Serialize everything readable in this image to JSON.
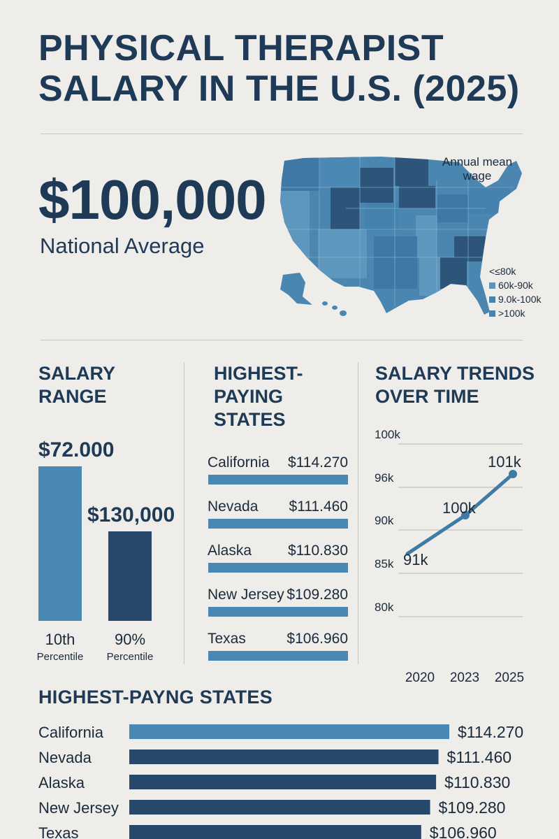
{
  "header": {
    "title_line1": "PHYSICAL THERAPIST",
    "title_line2": "SALARY IN THE U.S. (2025)"
  },
  "summary": {
    "value": "$100,000",
    "caption": "National Average"
  },
  "map": {
    "title_line1": "Annual mean",
    "title_line2": "wage",
    "legend": [
      {
        "label": "<≤80k",
        "color": null
      },
      {
        "label": "60k-90k",
        "color": "#5f93b6"
      },
      {
        "label": "9.0k-100k",
        "color": "#4b82aa"
      },
      {
        "label": ">100k",
        "color": "#4a82ae"
      }
    ],
    "colors": {
      "light": "#5e97bd",
      "mid": "#3f78a5",
      "dark": "#2d557a"
    }
  },
  "colors": {
    "primary": "#4a87b2",
    "dark": "#28486b",
    "text": "#1e3a56",
    "background": "#efedea"
  },
  "chart_data": [
    {
      "type": "bar",
      "title_line1": "SALARY",
      "title_line2": "RANGE",
      "categories": [
        "10th",
        "90%"
      ],
      "category_sublabels": [
        "Percentile",
        "Percentile"
      ],
      "value_labels": [
        "$72.000",
        "$130,000"
      ],
      "values": [
        72000,
        130000
      ],
      "colors": [
        "#4a87b2",
        "#28486b"
      ]
    },
    {
      "type": "bar",
      "orientation": "horizontal",
      "title_line1": "HIGHEST-",
      "title_line2": "PAYING",
      "title_line3": "STATES",
      "categories": [
        "California",
        "Nevada",
        "Alaska",
        "New Jersey",
        "Texas"
      ],
      "value_labels": [
        "$114.270",
        "$111.460",
        "$110.830",
        "$109.280",
        "$106.960"
      ],
      "values": [
        114270,
        111460,
        110830,
        109280,
        106960
      ],
      "color": "#4a87b2"
    },
    {
      "type": "line",
      "title_line1": "SALARY TRENDS",
      "title_line2": "OVER TIME",
      "x": [
        2020,
        2023,
        2025
      ],
      "x_labels": [
        "2020",
        "2023",
        "2025"
      ],
      "y_tick_labels": [
        "100k",
        "96k",
        "90k",
        "85k",
        "80k"
      ],
      "point_labels": [
        "91k",
        "100k",
        "101k"
      ],
      "color": "#3f7ba3",
      "grid": true
    },
    {
      "type": "bar",
      "orientation": "horizontal",
      "title": "HIGHEST-PAYNG STATES",
      "categories": [
        "California",
        "Nevada",
        "Alaska",
        "New Jersey",
        "Texas"
      ],
      "value_labels": [
        "$114.270",
        "$111.460",
        "$110.830",
        "$109.280",
        "$106.960"
      ],
      "values": [
        114270,
        111460,
        110830,
        109280,
        106960
      ],
      "colors": [
        "#4a87b2",
        "#28486b",
        "#28486b",
        "#28486b",
        "#28486b"
      ]
    }
  ]
}
